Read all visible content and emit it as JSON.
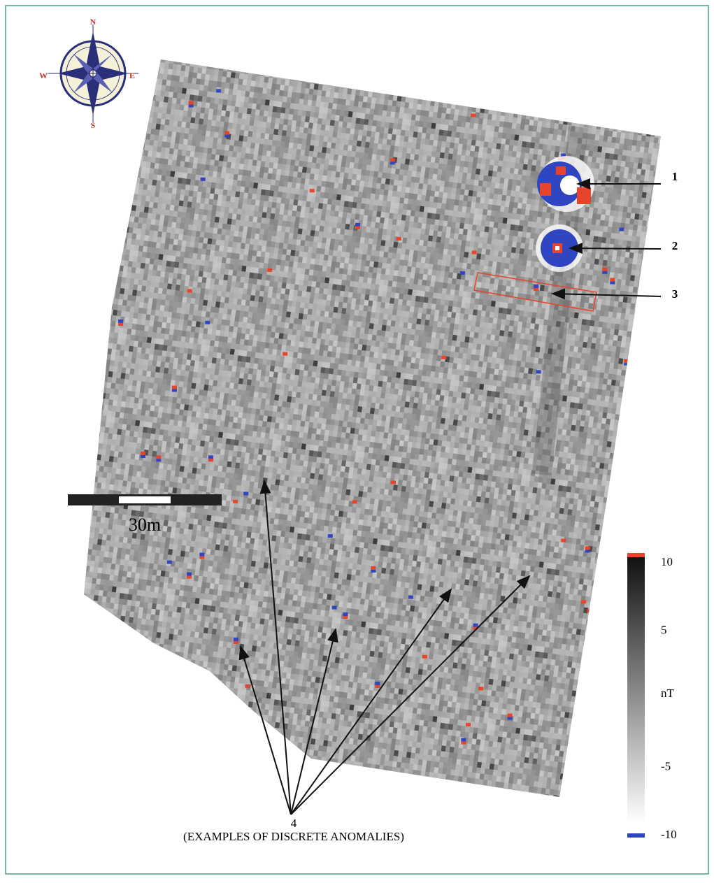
{
  "compass": {
    "north": "N",
    "south": "S",
    "east": "E",
    "west": "W"
  },
  "annotations": [
    {
      "label": "1"
    },
    {
      "label": "2"
    },
    {
      "label": "3"
    },
    {
      "label": "4",
      "caption": "(EXAMPLES OF DISCRETE ANOMALIES)"
    }
  ],
  "scale_bar": {
    "label": "30m"
  },
  "color_scale": {
    "unit": "nT",
    "range": [
      -10,
      10
    ],
    "ticks": [
      10,
      5,
      -5,
      -10
    ]
  }
}
